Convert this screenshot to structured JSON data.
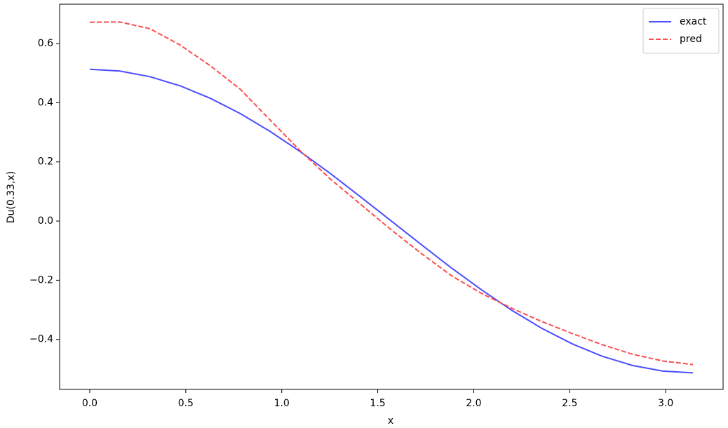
{
  "chart_data": {
    "type": "line",
    "xlabel": "x",
    "ylabel": "Du(0.33,x)",
    "x": [
      0,
      0.157,
      0.314,
      0.471,
      0.628,
      0.785,
      0.942,
      1.1,
      1.257,
      1.414,
      1.571,
      1.728,
      1.885,
      2.042,
      2.199,
      2.356,
      2.513,
      2.67,
      2.827,
      2.985,
      3.142
    ],
    "series": [
      {
        "name": "exact",
        "color": "#4d4dff",
        "dash": "solid",
        "values": [
          0.513,
          0.507,
          0.488,
          0.457,
          0.415,
          0.363,
          0.302,
          0.233,
          0.159,
          0.08,
          0.0,
          -0.08,
          -0.159,
          -0.233,
          -0.302,
          -0.363,
          -0.415,
          -0.457,
          -0.488,
          -0.507,
          -0.513
        ]
      },
      {
        "name": "pred",
        "color": "#ff4d4d",
        "dash": "dashed",
        "values": [
          0.672,
          0.673,
          0.65,
          0.595,
          0.525,
          0.445,
          0.34,
          0.235,
          0.14,
          0.055,
          -0.03,
          -0.11,
          -0.185,
          -0.245,
          -0.295,
          -0.34,
          -0.38,
          -0.418,
          -0.45,
          -0.473,
          -0.485
        ]
      }
    ],
    "xlim": [
      -0.157,
      3.299
    ],
    "ylim": [
      -0.569,
      0.733
    ],
    "xticks": [
      {
        "value": 0,
        "label": "0.0"
      },
      0.5,
      {
        "value": 1,
        "label": "1.0"
      },
      1.5,
      {
        "value": 2,
        "label": "2.0"
      },
      2.5,
      {
        "value": 3,
        "label": "3.0"
      }
    ],
    "yticks": [
      {
        "value": -0.4,
        "label": "−0.4"
      },
      {
        "value": -0.2,
        "label": "−0.2"
      },
      {
        "value": 0,
        "label": "0.0"
      },
      0.2,
      0.4,
      0.6
    ],
    "grid": false,
    "legend": "upper right"
  }
}
